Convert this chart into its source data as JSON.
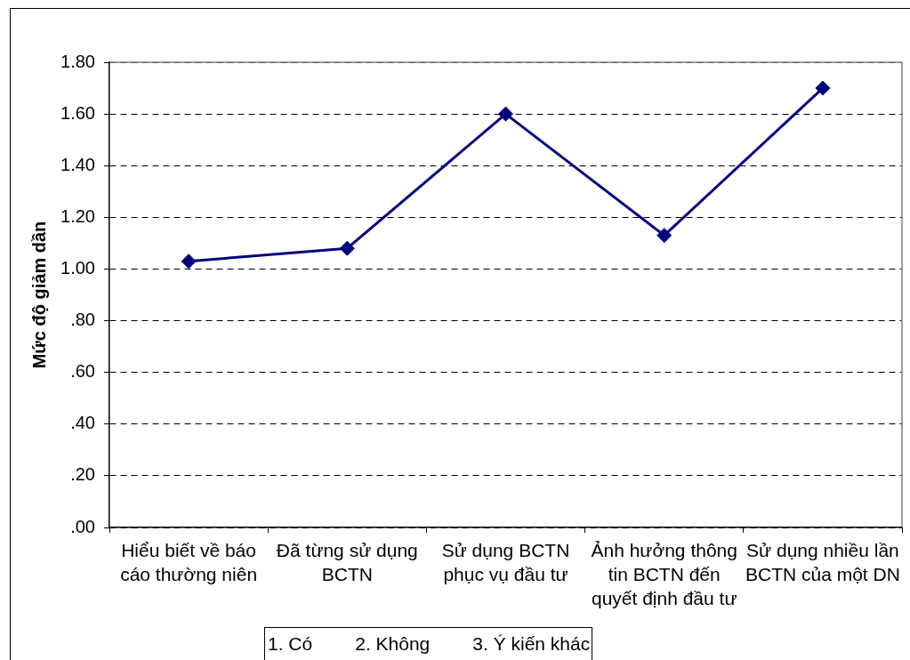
{
  "chart_data": {
    "type": "line",
    "ylabel": "Mức độ giảm dần",
    "categories": [
      "Hiểu biết về báo cáo thường niên",
      "Đã từng sử dụng BCTN",
      "Sử dụng BCTN phục vụ đầu tư",
      "Ảnh hưởng thông tin BCTN đến quyết định đầu tư",
      "Sử dụng nhiều lần BCTN của một DN"
    ],
    "series": [
      {
        "color": "#000080",
        "values": [
          1.03,
          1.08,
          1.6,
          1.13,
          1.7
        ]
      }
    ],
    "ylim": [
      0,
      1.8
    ],
    "yticks": [
      {
        "value": 0,
        "label": ".00"
      },
      {
        "value": 0.2,
        "label": ".20"
      },
      {
        "value": 0.4,
        "label": ".40"
      },
      {
        "value": 0.6,
        "label": ".60"
      },
      {
        "value": 0.8,
        "label": ".80"
      },
      {
        "value": 1,
        "label": "1.00"
      },
      {
        "value": 1.2,
        "label": "1.20"
      },
      {
        "value": 1.4,
        "label": "1.40"
      },
      {
        "value": 1.6,
        "label": "1.60"
      },
      {
        "value": 1.8,
        "label": "1.80"
      }
    ],
    "grid": "y",
    "marker": "diamond",
    "line_style": "solid",
    "annotations": [
      "1. Có",
      "2. Không",
      "3. Ý kiến khác"
    ]
  }
}
